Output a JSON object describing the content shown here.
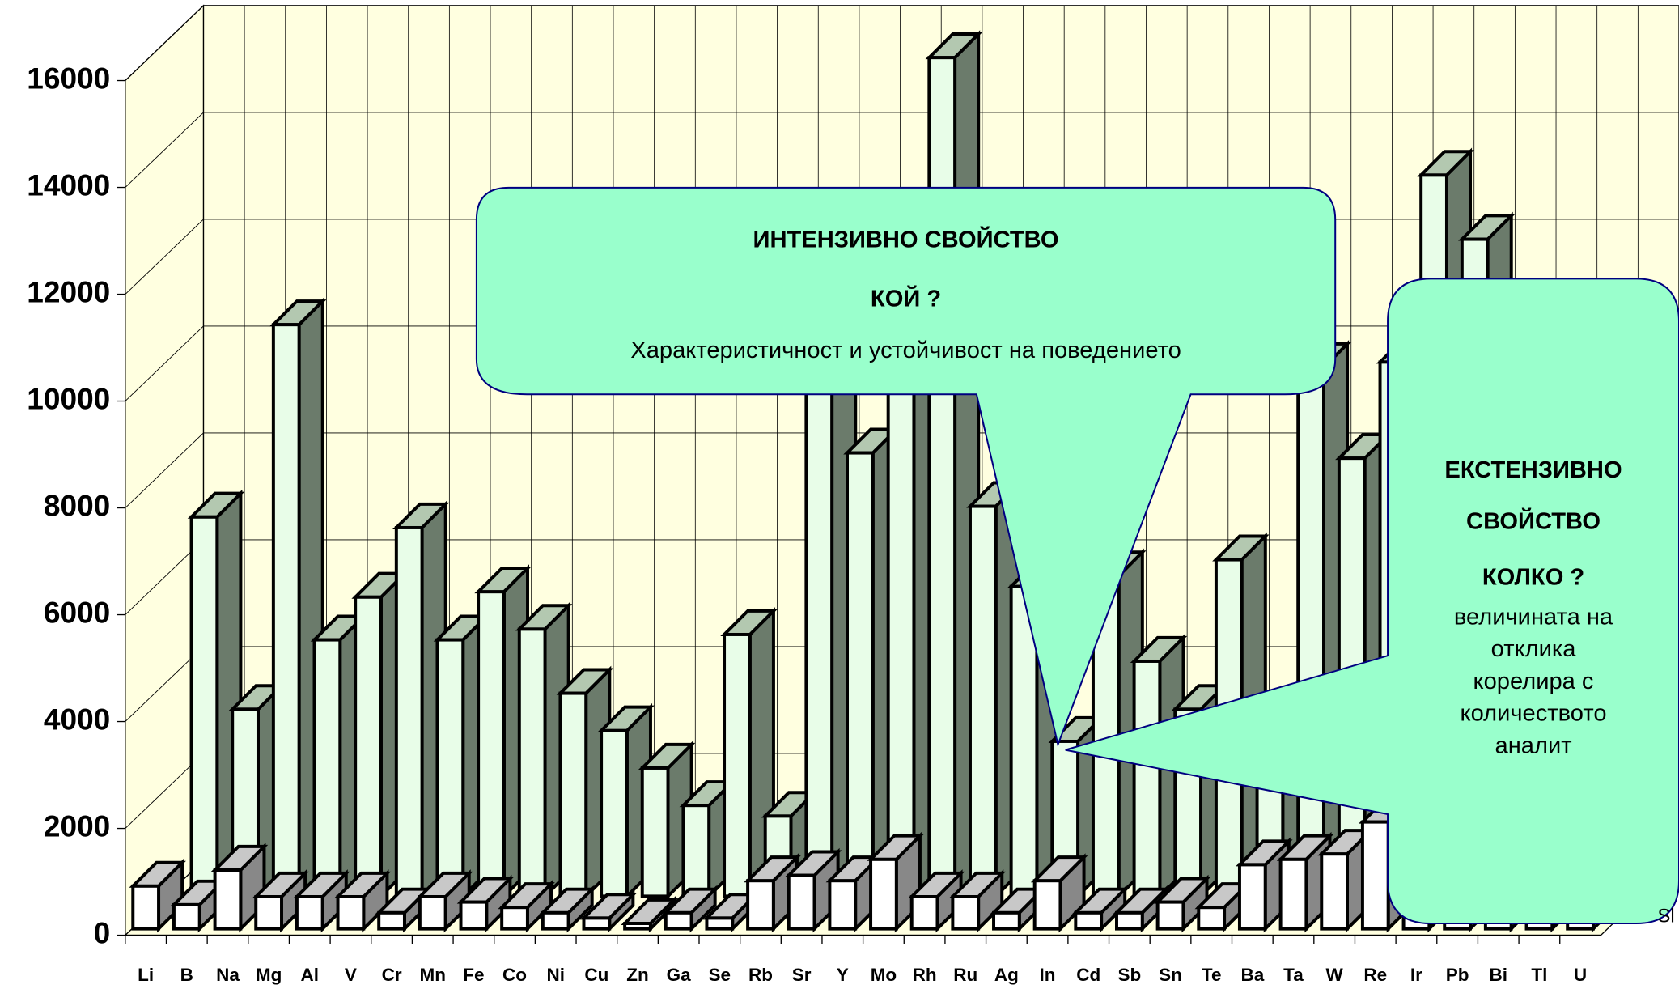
{
  "chart_data": {
    "type": "bar3d",
    "categories": [
      "Li",
      "B",
      "Na",
      "Mg",
      "Al",
      "V",
      "Cr",
      "Mn",
      "Fe",
      "Co",
      "Ni",
      "Cu",
      "Zn",
      "Ga",
      "Se",
      "Rb",
      "Sr",
      "Y",
      "Mo",
      "Rh",
      "Ru",
      "Ag",
      "In",
      "Cd",
      "Sb",
      "Sn",
      "Te",
      "Ba",
      "Ta",
      "W",
      "Re",
      "Ir",
      "Pb",
      "Bi",
      "Tl",
      "U"
    ],
    "series": [
      {
        "color": "#e8fde8",
        "values": [
          null,
          7100,
          3500,
          10700,
          4800,
          5600,
          6900,
          4800,
          5700,
          5000,
          3800,
          3100,
          2400,
          1700,
          4900,
          1500,
          10500,
          8300,
          10000,
          15700,
          7300,
          5800,
          2900,
          6000,
          4400,
          3500,
          6300,
          3000,
          9900,
          8200,
          10000,
          13500,
          12300,
          9000,
          5000,
          4000
        ]
      },
      {
        "color": "#ffffff",
        "values": [
          800,
          450,
          1100,
          600,
          600,
          600,
          300,
          600,
          500,
          400,
          300,
          200,
          100,
          300,
          200,
          900,
          1000,
          900,
          1300,
          600,
          600,
          300,
          900,
          300,
          300,
          500,
          400,
          1200,
          1300,
          1400,
          2000,
          2000,
          1500,
          1000,
          800,
          700
        ]
      }
    ],
    "ylim": [
      0,
      16000
    ],
    "yticks": [
      0,
      2000,
      4000,
      6000,
      8000,
      10000,
      12000,
      14000,
      16000
    ],
    "grid": true,
    "annotations": [
      "ИНТЕНЗИВНО СВОЙСТВО",
      "КОЙ ?",
      "Характеристичност и устойчивост на поведението",
      "ЕКСТЕНЗИВНО",
      "СВОЙСТВО",
      "КОЛКО ?",
      "величината на",
      "отклика",
      "корелира с",
      "количеството",
      "аналит",
      "Sl"
    ]
  }
}
